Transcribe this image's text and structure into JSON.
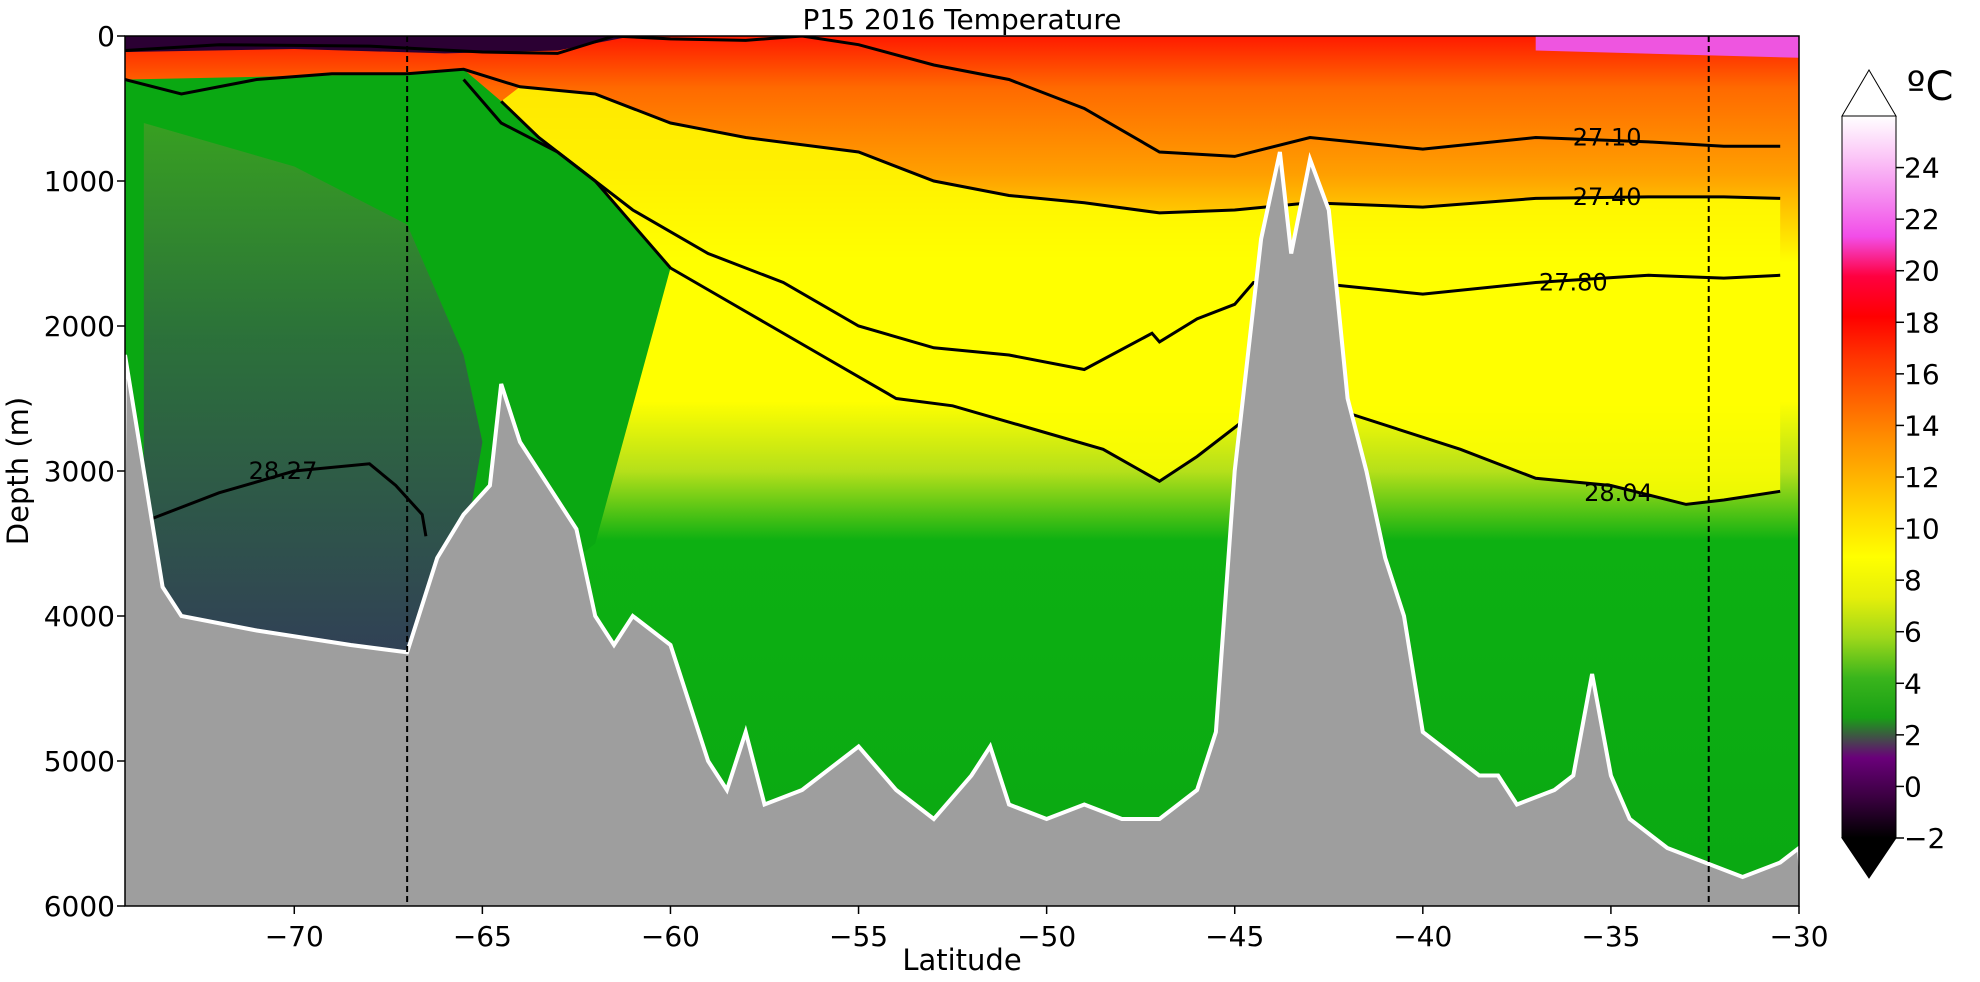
{
  "chart_data": {
    "type": "contour",
    "title": "P15 2016 Temperature",
    "xlabel": "Latitude",
    "ylabel": "Depth (m)",
    "xlim": [
      -74.5,
      -30
    ],
    "ylim": [
      6000,
      0
    ],
    "x_ticks": [
      -70,
      -65,
      -60,
      -55,
      -50,
      -45,
      -40,
      -35,
      -30
    ],
    "x_tick_labels": [
      "−70",
      "−65",
      "−60",
      "−55",
      "−50",
      "−45",
      "−40",
      "−35",
      "−30"
    ],
    "y_ticks": [
      0,
      1000,
      2000,
      3000,
      4000,
      5000,
      6000
    ],
    "y_tick_labels": [
      "0",
      "1000",
      "2000",
      "3000",
      "4000",
      "5000",
      "6000"
    ],
    "dashed_lines_latitude": [
      -67,
      -32.4
    ],
    "colorbar": {
      "unit": "ºC",
      "range": [
        -2,
        26
      ],
      "ticks": [
        -2,
        0,
        2,
        4,
        6,
        8,
        10,
        12,
        14,
        16,
        18,
        20,
        22,
        24
      ],
      "tick_labels": [
        "−2",
        "0",
        "2",
        "4",
        "6",
        "8",
        "10",
        "12",
        "14",
        "16",
        "18",
        "20",
        "22",
        "24"
      ],
      "colors": [
        "#000000",
        "#3a0040",
        "#6a007a",
        "#18a015",
        "#3ab51c",
        "#9fd81a",
        "#e5ef0a",
        "#ffff00",
        "#ffdc00",
        "#ffb300",
        "#ff8c00",
        "#ff6000",
        "#ff3300",
        "#ff0000",
        "#ff0040",
        "#f24de8",
        "#f58cf0",
        "#fbc7f7",
        "#ffffff"
      ]
    },
    "contours": [
      {
        "label": "27.10",
        "points": [
          [
            -74.5,
            100
          ],
          [
            -72,
            60
          ],
          [
            -68,
            70
          ],
          [
            -65,
            110
          ],
          [
            -63,
            120
          ],
          [
            -61.5,
            0
          ],
          [
            -60,
            20
          ],
          [
            -58,
            30
          ],
          [
            -56.5,
            0
          ],
          [
            -55,
            60
          ],
          [
            -53,
            200
          ],
          [
            -51,
            300
          ],
          [
            -49,
            500
          ],
          [
            -47,
            800
          ],
          [
            -45,
            830
          ],
          [
            -43,
            700
          ],
          [
            -40,
            780
          ],
          [
            -37,
            700
          ],
          [
            -34,
            730
          ],
          [
            -32,
            760
          ],
          [
            -30.5,
            760
          ]
        ]
      },
      {
        "label": "27.40",
        "points": [
          [
            -74.5,
            300
          ],
          [
            -73,
            400
          ],
          [
            -71,
            300
          ],
          [
            -69,
            260
          ],
          [
            -67,
            260
          ],
          [
            -65.5,
            230
          ],
          [
            -64,
            350
          ],
          [
            -62,
            400
          ],
          [
            -60,
            600
          ],
          [
            -58,
            700
          ],
          [
            -55,
            800
          ],
          [
            -53,
            1000
          ],
          [
            -51,
            1100
          ],
          [
            -49,
            1150
          ],
          [
            -47,
            1220
          ],
          [
            -45,
            1200
          ],
          [
            -43,
            1150
          ],
          [
            -40,
            1180
          ],
          [
            -37,
            1120
          ],
          [
            -34,
            1110
          ],
          [
            -32,
            1110
          ],
          [
            -30.5,
            1120
          ]
        ]
      },
      {
        "label": "27.80",
        "points": [
          [
            -65.5,
            300
          ],
          [
            -64.5,
            600
          ],
          [
            -63,
            800
          ],
          [
            -61,
            1200
          ],
          [
            -59,
            1500
          ],
          [
            -57,
            1700
          ],
          [
            -55,
            2000
          ],
          [
            -53,
            2150
          ],
          [
            -51,
            2200
          ],
          [
            -49,
            2300
          ],
          [
            -47.2,
            2050
          ],
          [
            -47,
            2110
          ],
          [
            -46,
            1950
          ],
          [
            -45,
            1850
          ],
          [
            -44.5,
            1700
          ],
          [
            -43,
            1700
          ],
          [
            -40,
            1780
          ],
          [
            -37,
            1700
          ],
          [
            -34,
            1650
          ],
          [
            -32,
            1670
          ],
          [
            -30.5,
            1650
          ]
        ]
      },
      {
        "label": "28.04",
        "points": [
          [
            -64.5,
            450
          ],
          [
            -63.5,
            700
          ],
          [
            -62,
            1000
          ],
          [
            -60,
            1600
          ],
          [
            -58,
            1900
          ],
          [
            -56,
            2200
          ],
          [
            -54,
            2500
          ],
          [
            -52.5,
            2550
          ],
          [
            -50.5,
            2700
          ],
          [
            -48.5,
            2850
          ],
          [
            -47,
            3070
          ],
          [
            -46,
            2900
          ],
          [
            -44.5,
            2600
          ],
          [
            -42,
            2600
          ],
          [
            -39,
            2850
          ],
          [
            -37,
            3050
          ],
          [
            -35,
            3100
          ],
          [
            -33,
            3230
          ],
          [
            -32,
            3200
          ],
          [
            -30.5,
            3140
          ]
        ]
      },
      {
        "label": "28.27",
        "points": [
          [
            -73.8,
            3330
          ],
          [
            -72,
            3150
          ],
          [
            -70,
            3000
          ],
          [
            -68,
            2950
          ],
          [
            -67.3,
            3100
          ],
          [
            -66.6,
            3300
          ],
          [
            -66.5,
            3450
          ]
        ]
      }
    ],
    "bathymetry_depth": [
      [
        -74.5,
        2200
      ],
      [
        -73.5,
        3800
      ],
      [
        -73,
        4000
      ],
      [
        -71,
        4100
      ],
      [
        -68.5,
        4200
      ],
      [
        -67,
        4250
      ],
      [
        -66.2,
        3600
      ],
      [
        -65.5,
        3300
      ],
      [
        -64.8,
        3100
      ],
      [
        -64.5,
        2400
      ],
      [
        -64,
        2800
      ],
      [
        -63,
        3200
      ],
      [
        -62.5,
        3400
      ],
      [
        -62,
        4000
      ],
      [
        -61.5,
        4200
      ],
      [
        -61,
        4000
      ],
      [
        -60,
        4200
      ],
      [
        -59,
        5000
      ],
      [
        -58.5,
        5200
      ],
      [
        -58,
        4800
      ],
      [
        -57.5,
        5300
      ],
      [
        -56.5,
        5200
      ],
      [
        -55,
        4900
      ],
      [
        -54,
        5200
      ],
      [
        -53,
        5400
      ],
      [
        -52,
        5100
      ],
      [
        -51.5,
        4900
      ],
      [
        -51,
        5300
      ],
      [
        -50,
        5400
      ],
      [
        -49,
        5300
      ],
      [
        -48,
        5400
      ],
      [
        -47,
        5400
      ],
      [
        -46,
        5200
      ],
      [
        -45.5,
        4800
      ],
      [
        -45,
        3000
      ],
      [
        -44.3,
        1400
      ],
      [
        -43.8,
        800
      ],
      [
        -43.5,
        1500
      ],
      [
        -43,
        850
      ],
      [
        -42.5,
        1200
      ],
      [
        -42,
        2500
      ],
      [
        -41.5,
        3000
      ],
      [
        -41,
        3600
      ],
      [
        -40.5,
        4000
      ],
      [
        -40,
        4800
      ],
      [
        -39,
        5000
      ],
      [
        -38.5,
        5100
      ],
      [
        -38,
        5100
      ],
      [
        -37.5,
        5300
      ],
      [
        -36.5,
        5200
      ],
      [
        -36,
        5100
      ],
      [
        -35.5,
        4400
      ],
      [
        -35,
        5100
      ],
      [
        -34.5,
        5400
      ],
      [
        -33.5,
        5600
      ],
      [
        -32.5,
        5700
      ],
      [
        -31.5,
        5800
      ],
      [
        -30.5,
        5700
      ],
      [
        -30,
        5600
      ]
    ]
  }
}
